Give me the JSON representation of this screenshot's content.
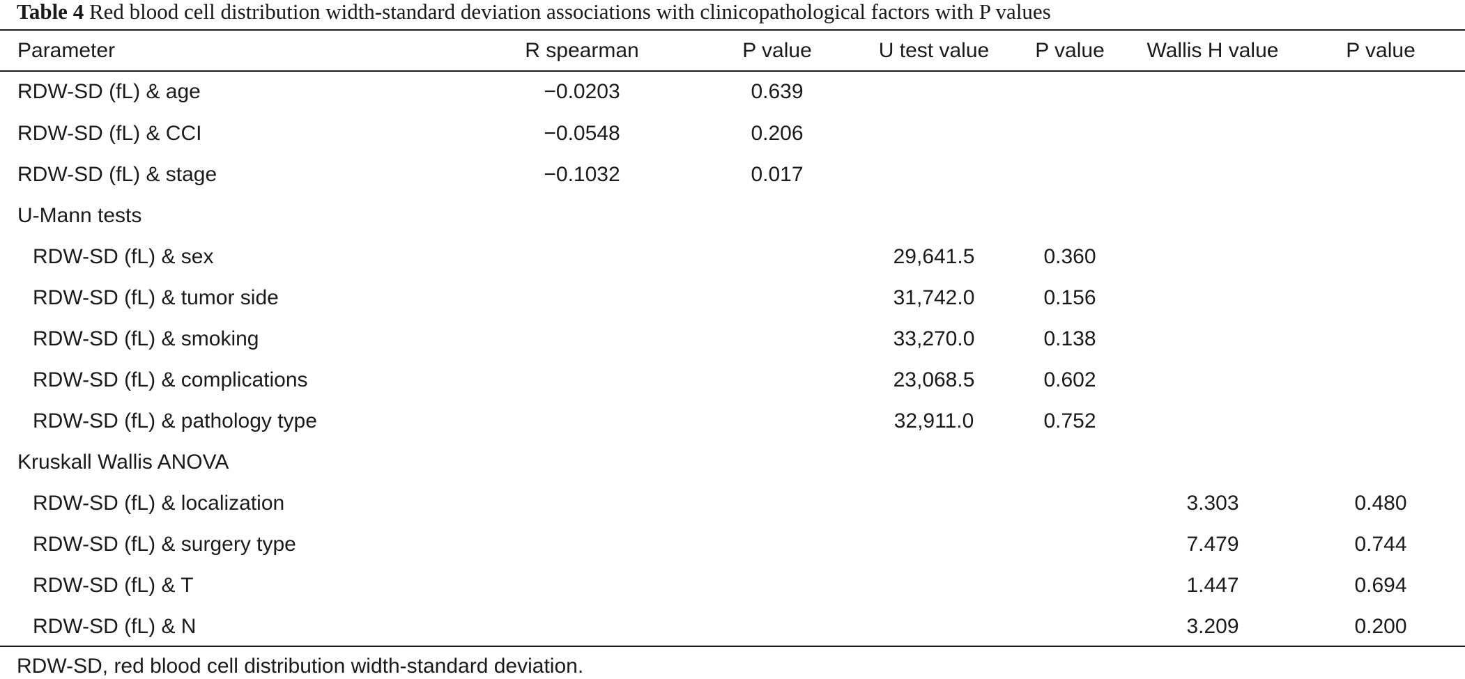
{
  "caption": {
    "label": "Table 4",
    "text": "Red blood cell distribution width-standard deviation associations with clinicopathological factors with P values"
  },
  "columns": [
    "Parameter",
    "R spearman",
    "P value",
    "U test value",
    "P value",
    "Wallis H value",
    "P value"
  ],
  "rows": [
    {
      "label": "RDW-SD (fL) & age",
      "cells": [
        "−0.0203",
        "0.639",
        "",
        "",
        "",
        ""
      ]
    },
    {
      "label": "RDW-SD (fL) & CCI",
      "cells": [
        "−0.0548",
        "0.206",
        "",
        "",
        "",
        ""
      ]
    },
    {
      "label": "RDW-SD (fL) & stage",
      "cells": [
        "−0.1032",
        "0.017",
        "",
        "",
        "",
        ""
      ]
    },
    {
      "label": "U-Mann tests",
      "cells": [
        "",
        "",
        "",
        "",
        "",
        ""
      ]
    },
    {
      "label": "RDW-SD (fL) & sex",
      "cells": [
        "",
        "",
        "29,641.5",
        "0.360",
        "",
        ""
      ]
    },
    {
      "label": "RDW-SD (fL) & tumor side",
      "cells": [
        "",
        "",
        "31,742.0",
        "0.156",
        "",
        ""
      ]
    },
    {
      "label": "RDW-SD (fL) & smoking",
      "cells": [
        "",
        "",
        "33,270.0",
        "0.138",
        "",
        ""
      ]
    },
    {
      "label": "RDW-SD (fL) & complications",
      "cells": [
        "",
        "",
        "23,068.5",
        "0.602",
        "",
        ""
      ]
    },
    {
      "label": "RDW-SD (fL) & pathology type",
      "cells": [
        "",
        "",
        "32,911.0",
        "0.752",
        "",
        ""
      ]
    },
    {
      "label": "Kruskall Wallis ANOVA",
      "cells": [
        "",
        "",
        "",
        "",
        "",
        ""
      ]
    },
    {
      "label": "RDW-SD (fL) & localization",
      "cells": [
        "",
        "",
        "",
        "",
        "3.303",
        "0.480"
      ]
    },
    {
      "label": "RDW-SD (fL) & surgery type",
      "cells": [
        "",
        "",
        "",
        "",
        "7.479",
        "0.744"
      ]
    },
    {
      "label": "RDW-SD (fL) & T",
      "cells": [
        "",
        "",
        "",
        "",
        "1.447",
        "0.694"
      ]
    },
    {
      "label": "RDW-SD (fL) & N",
      "cells": [
        "",
        "",
        "",
        "",
        "3.209",
        "0.200"
      ]
    }
  ],
  "footnote": "RDW-SD, red blood cell distribution width-standard deviation."
}
